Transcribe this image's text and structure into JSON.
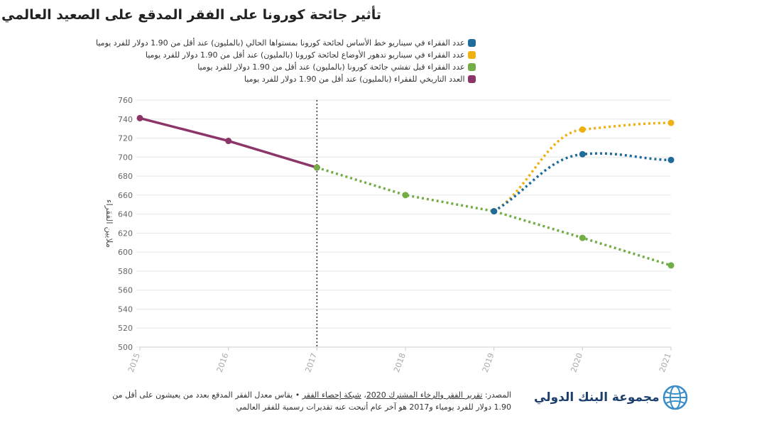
{
  "title": "تأثير جائحة كورونا على الفقر المدقع على الصعيد العالمي",
  "chart_data": {
    "type": "line",
    "title": "تأثير جائحة كورونا على الفقر المدقع على الصعيد العالمي",
    "ylabel": "ملايين الفقراء",
    "xlabel": "",
    "x": [
      2015,
      2016,
      2017,
      2018,
      2019,
      2020,
      2021
    ],
    "ylim": [
      500,
      760
    ],
    "yticks": [
      500,
      520,
      540,
      560,
      580,
      600,
      620,
      640,
      660,
      680,
      700,
      720,
      740,
      760
    ],
    "grid": true,
    "legend_placement": "top-left",
    "vline_at": 2017,
    "series": [
      {
        "name": "عدد الفقراء في سيناريو خط الأساس لجائحة كورونا بمستواها الحالي (بالمليون) عند أقل من 1.90 دولار للفرد يوميا",
        "color": "#1f6b9a",
        "dotted": true,
        "points": [
          [
            2019,
            643
          ],
          [
            2020,
            703
          ],
          [
            2021,
            697
          ]
        ]
      },
      {
        "name": "عدد الفقراء في سيناريو تدهور الأوضاع لجائحة كورونا (بالمليون) عند أقل من 1.90 دولار للفرد يوميا",
        "color": "#eeb111",
        "dotted": true,
        "points": [
          [
            2019,
            643
          ],
          [
            2020,
            729
          ],
          [
            2021,
            736
          ]
        ]
      },
      {
        "name": "عدد الفقراء قبل تفشي جائحة كورونا (بالمليون) عند أقل من 1.90 دولار للفرد يوميا",
        "color": "#72ad45",
        "dotted": true,
        "points": [
          [
            2017,
            689
          ],
          [
            2018,
            660
          ],
          [
            2019,
            643
          ],
          [
            2020,
            615
          ],
          [
            2021,
            586
          ]
        ]
      },
      {
        "name": "العدد التاريخي للفقراء (بالمليون) عند أقل من 1.90 دولار للفرد يوميا",
        "color": "#8c3569",
        "dotted": false,
        "points": [
          [
            2015,
            741
          ],
          [
            2016,
            717
          ],
          [
            2017,
            689
          ]
        ]
      }
    ]
  },
  "source": {
    "prefix": "المصدر: ",
    "link1": "تقرير الفقر والرخاء المشترك 2020",
    "sep": "، ",
    "link2": "شبكة إحصاء الفقر",
    "text": " • يقاس معدل الفقر المدقع بعدد من يعيشون على أقل من 1.90 دولار للفرد يومياء و2017 هو آخر عام أتيحت عنه تقديرات رسمية للفقر العالمي"
  },
  "logo": {
    "text": "مجموعة البنك الدولي"
  }
}
